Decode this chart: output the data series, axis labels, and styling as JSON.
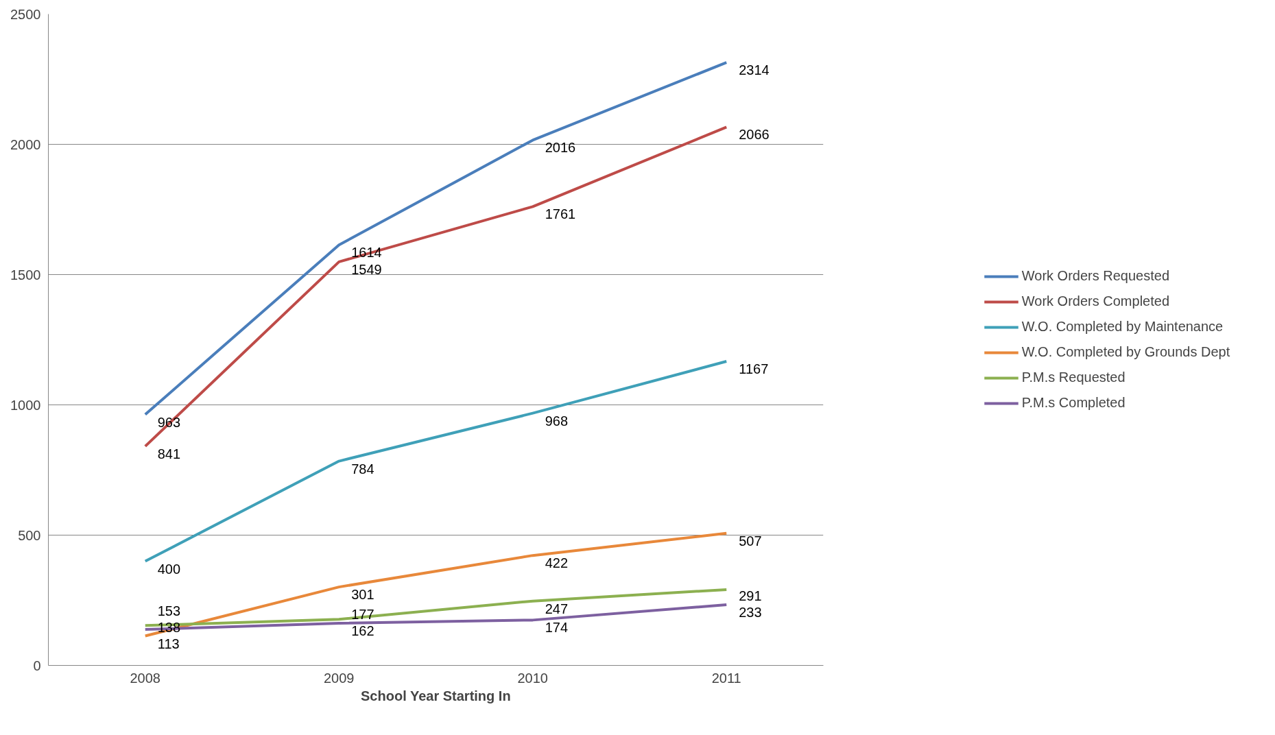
{
  "chart_data": {
    "type": "line",
    "xlabel": "School Year Starting In",
    "categories": [
      "2008",
      "2009",
      "2010",
      "2011"
    ],
    "series": [
      {
        "name": "Work Orders Requested",
        "color": "#4a7ebb",
        "values": [
          963,
          1614,
          2016,
          2314
        ]
      },
      {
        "name": "Work Orders Completed",
        "color": "#be4b48",
        "values": [
          841,
          1549,
          1761,
          2066
        ]
      },
      {
        "name": "W.O. Completed by Maintenance",
        "color": "#3fa0b8",
        "values": [
          400,
          784,
          968,
          1167
        ]
      },
      {
        "name": "W.O. Completed by Grounds Dept",
        "color": "#e8883a",
        "values": [
          113,
          301,
          422,
          507
        ]
      },
      {
        "name": "P.M.s Requested",
        "color": "#8cb050",
        "values": [
          153,
          177,
          247,
          291
        ]
      },
      {
        "name": "P.M.s Completed",
        "color": "#7d60a0",
        "values": [
          138,
          162,
          174,
          233
        ]
      }
    ],
    "ylim": [
      0,
      2500
    ],
    "yticks": [
      0,
      500,
      1000,
      1500,
      2000,
      2500
    ],
    "grid": "y",
    "legend": "right",
    "data_labels": true,
    "marker": "none",
    "line_style": "solid"
  }
}
